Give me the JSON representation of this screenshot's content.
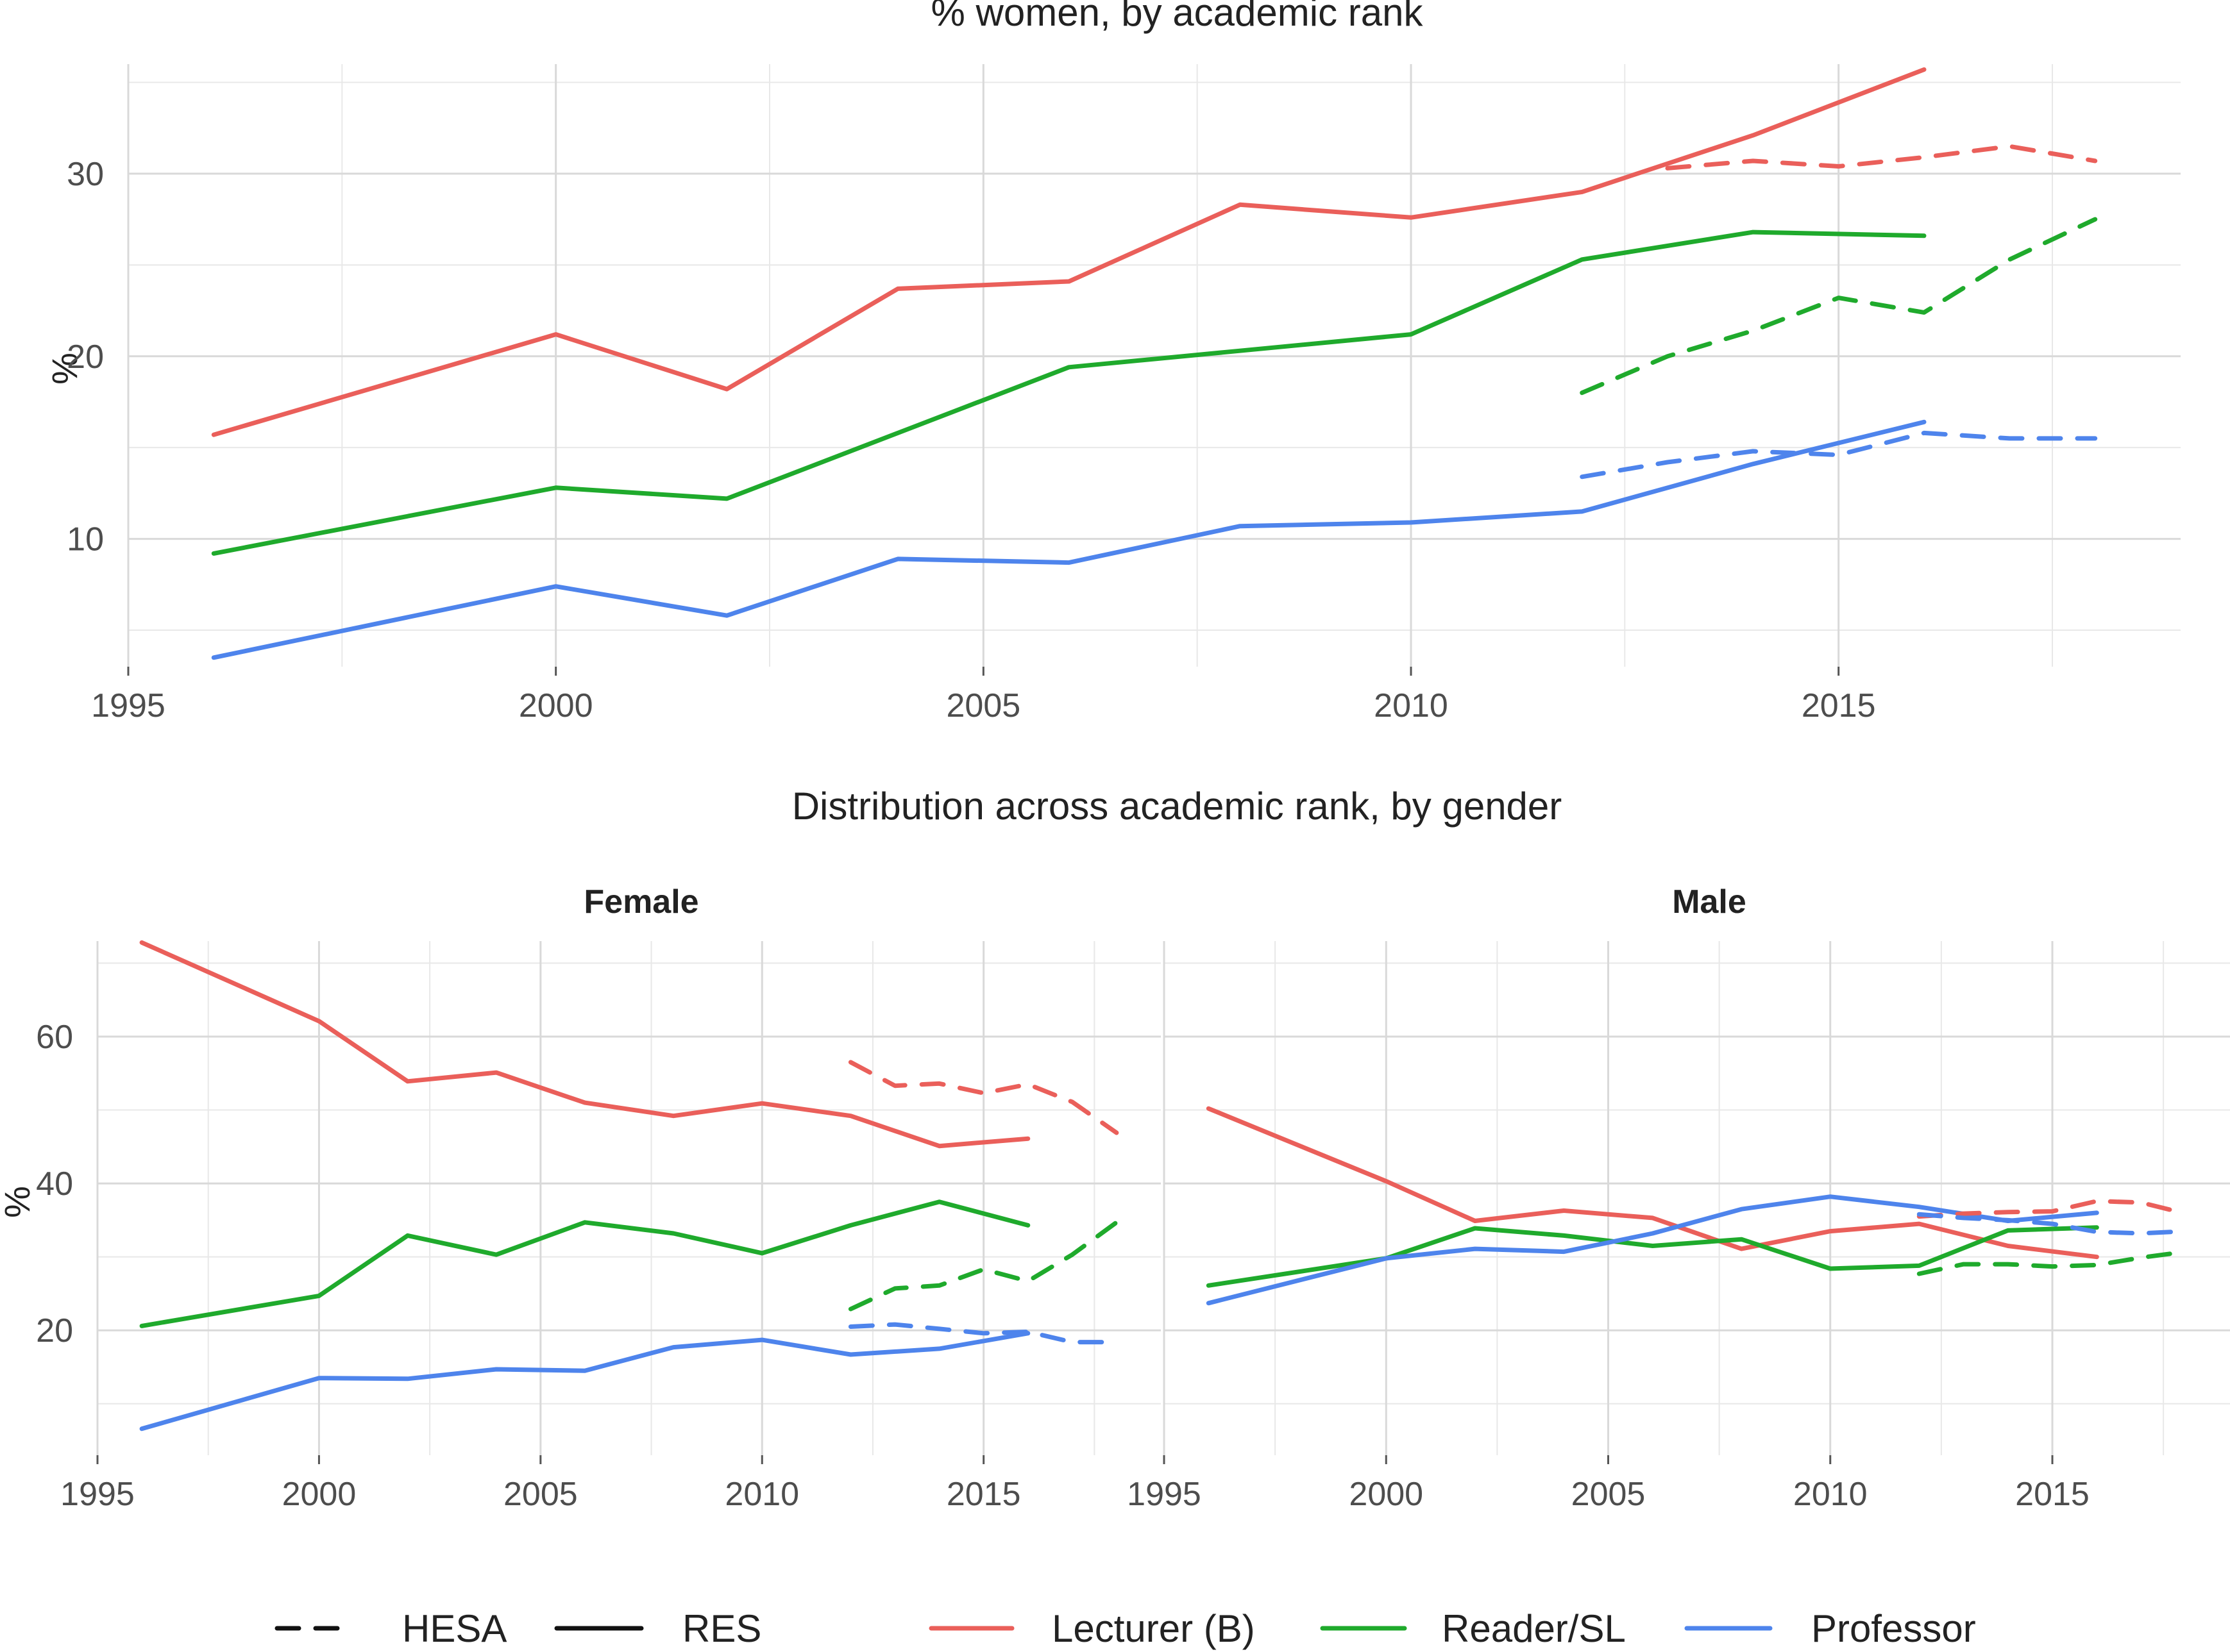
{
  "colors": {
    "Lecturer (B)": "#ea5f5a",
    "Reader/SL": "#1faa2c",
    "Professor": "#4e84ec",
    "legend_black": "#111111"
  },
  "legend": {
    "linetype": [
      {
        "label": "HESA",
        "style": "dashed"
      },
      {
        "label": "RES",
        "style": "solid"
      }
    ],
    "rank": [
      {
        "label": "Lecturer (B)"
      },
      {
        "label": "Reader/SL"
      },
      {
        "label": "Professor"
      }
    ]
  },
  "chart_data": [
    {
      "type": "line",
      "title": "% women, by academic rank",
      "xlabel": "",
      "ylabel": "%",
      "xlim": [
        1995,
        2019
      ],
      "ylim": [
        3,
        36
      ],
      "x_ticks": [
        1995,
        2000,
        2005,
        2010,
        2015
      ],
      "y_ticks": [
        10,
        20,
        30
      ],
      "grid": true,
      "series": [
        {
          "name": "Lecturer (B)",
          "source": "RES",
          "x": [
            1996,
            2000,
            2002,
            2004,
            2006,
            2008,
            2010,
            2012,
            2014,
            2016
          ],
          "y": [
            15.7,
            21.2,
            18.2,
            23.7,
            24.1,
            28.3,
            27.6,
            29.0,
            32.1,
            35.7
          ]
        },
        {
          "name": "Reader/SL",
          "source": "RES",
          "x": [
            1996,
            2000,
            2002,
            2004,
            2006,
            2008,
            2010,
            2012,
            2014,
            2016
          ],
          "y": [
            9.2,
            12.8,
            12.2,
            15.8,
            19.4,
            20.3,
            21.2,
            25.3,
            26.8,
            26.6
          ]
        },
        {
          "name": "Professor",
          "source": "RES",
          "x": [
            1996,
            2000,
            2002,
            2004,
            2006,
            2008,
            2010,
            2012,
            2014,
            2016
          ],
          "y": [
            3.5,
            7.4,
            5.8,
            8.9,
            8.7,
            10.7,
            10.9,
            11.5,
            14.1,
            16.4
          ]
        },
        {
          "name": "Lecturer (B)",
          "source": "HESA",
          "x": [
            2013,
            2014,
            2015,
            2016,
            2017,
            2018
          ],
          "y": [
            30.3,
            30.7,
            30.4,
            30.9,
            31.5,
            30.7
          ]
        },
        {
          "name": "Reader/SL",
          "source": "HESA",
          "x": [
            2012,
            2013,
            2014,
            2015,
            2016,
            2017,
            2018
          ],
          "y": [
            18.0,
            20.0,
            21.4,
            23.2,
            22.4,
            25.3,
            27.5
          ]
        },
        {
          "name": "Professor",
          "source": "HESA",
          "x": [
            2012,
            2013,
            2014,
            2015,
            2016,
            2017,
            2018
          ],
          "y": [
            13.4,
            14.2,
            14.8,
            14.6,
            15.8,
            15.5,
            15.5
          ]
        }
      ]
    },
    {
      "type": "line",
      "title": "Distribution across academic rank, by gender",
      "ylabel": "%",
      "xlim": [
        1995,
        2019
      ],
      "ylim": [
        3,
        73
      ],
      "x_ticks": [
        1995,
        2000,
        2005,
        2010,
        2015
      ],
      "y_ticks": [
        20,
        40,
        60
      ],
      "grid": true,
      "panels": [
        {
          "name": "Female",
          "series": [
            {
              "name": "Lecturer (B)",
              "source": "RES",
              "x": [
                1996,
                2000,
                2002,
                2004,
                2006,
                2008,
                2010,
                2012,
                2014,
                2016
              ],
              "y": [
                72.8,
                62.1,
                53.9,
                55.1,
                51.0,
                49.2,
                50.9,
                49.2,
                45.1,
                46.1
              ]
            },
            {
              "name": "Reader/SL",
              "source": "RES",
              "x": [
                1996,
                2000,
                2002,
                2004,
                2006,
                2008,
                2010,
                2012,
                2014,
                2016
              ],
              "y": [
                20.6,
                24.7,
                32.9,
                30.3,
                34.7,
                33.2,
                30.5,
                34.3,
                37.5,
                34.3
              ]
            },
            {
              "name": "Professor",
              "source": "RES",
              "x": [
                1996,
                2000,
                2002,
                2004,
                2006,
                2008,
                2010,
                2012,
                2014,
                2016
              ],
              "y": [
                6.6,
                13.5,
                13.4,
                14.7,
                14.5,
                17.7,
                18.7,
                16.7,
                17.5,
                19.6
              ]
            },
            {
              "name": "Lecturer (B)",
              "source": "HESA",
              "x": [
                2012,
                2013,
                2014,
                2015,
                2016,
                2017,
                2018
              ],
              "y": [
                56.5,
                53.3,
                53.6,
                52.3,
                53.5,
                51.1,
                46.9
              ]
            },
            {
              "name": "Reader/SL",
              "source": "HESA",
              "x": [
                2012,
                2013,
                2014,
                2015,
                2016,
                2017,
                2018
              ],
              "y": [
                22.9,
                25.7,
                26.1,
                28.3,
                26.7,
                30.3,
                34.7
              ]
            },
            {
              "name": "Professor",
              "source": "HESA",
              "x": [
                2012,
                2013,
                2014,
                2015,
                2016,
                2017,
                2018
              ],
              "y": [
                20.5,
                20.8,
                20.2,
                19.6,
                19.8,
                18.4,
                18.4
              ]
            }
          ]
        },
        {
          "name": "Male",
          "series": [
            {
              "name": "Lecturer (B)",
              "source": "RES",
              "x": [
                1996,
                2000,
                2002,
                2004,
                2006,
                2008,
                2010,
                2012,
                2014,
                2016
              ],
              "y": [
                50.2,
                40.3,
                34.9,
                36.3,
                35.3,
                31.1,
                33.5,
                34.5,
                31.5,
                30.0
              ]
            },
            {
              "name": "Reader/SL",
              "source": "RES",
              "x": [
                1996,
                2000,
                2002,
                2004,
                2006,
                2008,
                2010,
                2012,
                2014,
                2016
              ],
              "y": [
                26.1,
                29.8,
                33.9,
                32.9,
                31.5,
                32.4,
                28.4,
                28.8,
                33.6,
                34.0
              ]
            },
            {
              "name": "Professor",
              "source": "RES",
              "x": [
                1996,
                2000,
                2002,
                2004,
                2006,
                2008,
                2010,
                2012,
                2014,
                2016
              ],
              "y": [
                23.7,
                29.8,
                31.1,
                30.7,
                33.2,
                36.5,
                38.2,
                36.8,
                34.9,
                36.0
              ]
            },
            {
              "name": "Lecturer (B)",
              "source": "HESA",
              "x": [
                2012,
                2013,
                2014,
                2015,
                2016,
                2017,
                2018
              ],
              "y": [
                35.5,
                35.9,
                36.1,
                36.2,
                37.6,
                37.4,
                35.9
              ]
            },
            {
              "name": "Reader/SL",
              "source": "HESA",
              "x": [
                2012,
                2013,
                2014,
                2015,
                2016,
                2017,
                2018
              ],
              "y": [
                27.7,
                29.0,
                29.0,
                28.7,
                28.9,
                29.9,
                30.7
              ]
            },
            {
              "name": "Professor",
              "source": "HESA",
              "x": [
                2012,
                2013,
                2014,
                2015,
                2016,
                2017,
                2018
              ],
              "y": [
                35.8,
                35.3,
                35.0,
                34.5,
                33.4,
                33.2,
                33.5
              ]
            }
          ]
        }
      ]
    }
  ]
}
